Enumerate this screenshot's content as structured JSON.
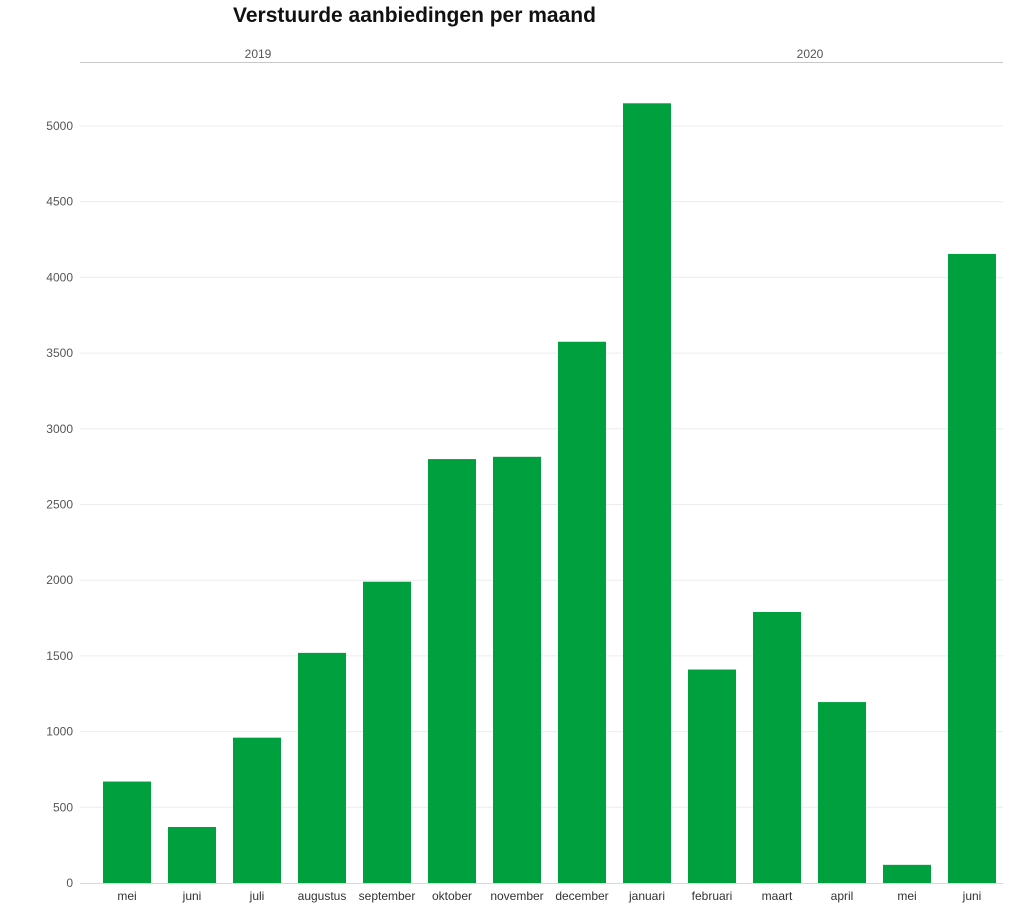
{
  "chart_data": {
    "type": "bar",
    "title": "Verstuurde aanbiedingen per maand",
    "groups": [
      {
        "label": "2019",
        "categories": [
          "mei",
          "juni",
          "juli",
          "augustus",
          "september",
          "oktober",
          "november",
          "december"
        ]
      },
      {
        "label": "2020",
        "categories": [
          "januari",
          "februari",
          "maart",
          "april",
          "mei",
          "juni"
        ]
      }
    ],
    "categories": [
      "mei",
      "juni",
      "juli",
      "augustus",
      "september",
      "oktober",
      "november",
      "december",
      "januari",
      "februari",
      "maart",
      "april",
      "mei",
      "juni"
    ],
    "values": [
      670,
      370,
      960,
      1520,
      1990,
      2800,
      2815,
      3575,
      5150,
      1410,
      1790,
      1195,
      120,
      4155
    ],
    "ylim": [
      0,
      5300
    ],
    "yticks": [
      0,
      500,
      1000,
      1500,
      2000,
      2500,
      3000,
      3500,
      4000,
      4500,
      5000
    ],
    "grid": true,
    "bar_color": "#00a03e",
    "xlabel": "",
    "ylabel": ""
  }
}
